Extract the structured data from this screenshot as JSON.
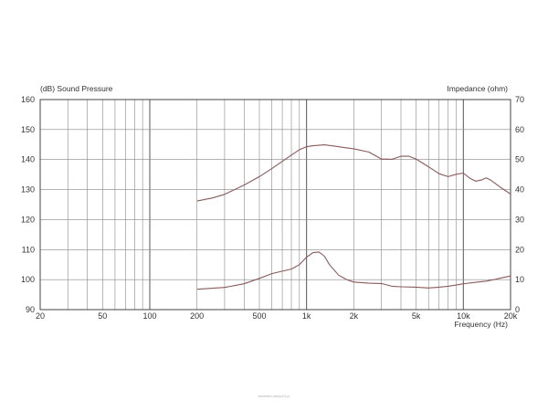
{
  "chart_data": {
    "type": "line",
    "title": "",
    "ylabel": "(dB)  Sound Pressure",
    "ylabel_right": "Impedance  (ohm)",
    "xlabel": "Frequency  (Hz)",
    "x_scale": "log",
    "xlim": [
      20,
      20000
    ],
    "ylim": [
      90,
      160
    ],
    "ylim_right": [
      0,
      70
    ],
    "grid": true,
    "x_ticks": [
      20,
      50,
      100,
      200,
      500,
      1000,
      2000,
      5000,
      10000,
      20000
    ],
    "x_tick_labels": [
      "20",
      "50",
      "100",
      "200",
      "500",
      "1k",
      "2k",
      "5k",
      "10k",
      "20k"
    ],
    "y_ticks": [
      90,
      100,
      110,
      120,
      130,
      140,
      150,
      160
    ],
    "y_ticks_right": [
      0,
      10,
      20,
      30,
      40,
      50,
      60,
      70
    ],
    "line_color": "#8a5a5a",
    "series": [
      {
        "axis": "left",
        "x": [
          200,
          250,
          300,
          400,
          500,
          600,
          700,
          800,
          900,
          1000,
          1100,
          1300,
          1500,
          1800,
          2000,
          2500,
          3000,
          3500,
          4000,
          4500,
          5000,
          6000,
          7000,
          8000,
          9000,
          10000,
          11000,
          12000,
          13000,
          14000,
          15000,
          17000,
          20000
        ],
        "y": [
          126.2,
          127.2,
          128.4,
          131.5,
          134.3,
          137,
          139.4,
          141.5,
          143.3,
          144.3,
          144.6,
          144.9,
          144.5,
          143.9,
          143.6,
          142.5,
          140.2,
          140.1,
          141.1,
          141.1,
          140.2,
          137.6,
          135.3,
          134.3,
          135.1,
          135.5,
          133.8,
          132.8,
          133.2,
          133.9,
          133.1,
          131,
          128.5
        ]
      },
      {
        "axis": "right",
        "x": [
          200,
          300,
          400,
          500,
          600,
          700,
          800,
          900,
          1000,
          1100,
          1200,
          1300,
          1400,
          1600,
          1800,
          2000,
          2500,
          3000,
          3500,
          4000,
          5000,
          6000,
          7000,
          8000,
          9000,
          10000,
          12000,
          14000,
          16000,
          18000,
          20000
        ],
        "y": [
          6.8,
          7.4,
          8.6,
          10.4,
          12,
          12.8,
          13.5,
          15,
          17.5,
          19,
          19.2,
          17.8,
          15,
          11.5,
          10,
          9.2,
          8.8,
          8.7,
          7.8,
          7.6,
          7.5,
          7.2,
          7.5,
          7.8,
          8.2,
          8.6,
          9.1,
          9.5,
          10.1,
          10.7,
          11.2
        ]
      }
    ]
  },
  "watermark": "inwestex.sklep24.pl"
}
